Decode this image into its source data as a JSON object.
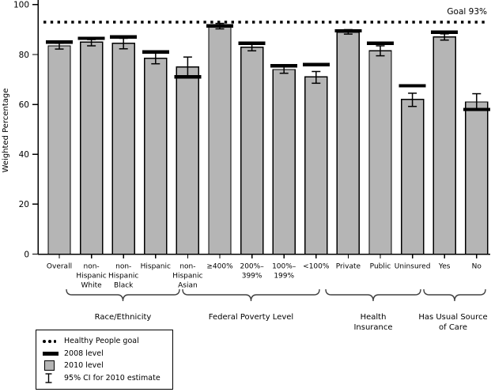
{
  "chart_data": {
    "type": "bar",
    "title": "",
    "ylabel": "Weighted Percentage",
    "xlabel": "",
    "ylim": [
      0,
      100
    ],
    "yticks": [
      0,
      20,
      40,
      60,
      80,
      100
    ],
    "grid": false,
    "goal": {
      "label": "Goal 93%",
      "value": 93
    },
    "legend_position": "bottom-left",
    "legend": [
      {
        "symbol": "dotted-line",
        "label": "Healthy People goal"
      },
      {
        "symbol": "black-dash",
        "label": "2008 level"
      },
      {
        "symbol": "gray-box",
        "label": "2010 level"
      },
      {
        "symbol": "error-bar",
        "label": "95% CI for 2010 estimate"
      }
    ],
    "categories": [
      {
        "lines": [
          "Overall"
        ]
      },
      {
        "lines": [
          "non-",
          "Hispanic",
          "White"
        ]
      },
      {
        "lines": [
          "non-",
          "Hispanic",
          "Black"
        ]
      },
      {
        "lines": [
          "Hispanic"
        ]
      },
      {
        "lines": [
          "non-",
          "Hispanic",
          "Asian"
        ]
      },
      {
        "lines": [
          "≥400%"
        ]
      },
      {
        "lines": [
          "200%–",
          "399%"
        ]
      },
      {
        "lines": [
          "100%–",
          "199%"
        ]
      },
      {
        "lines": [
          "<100%"
        ]
      },
      {
        "lines": [
          "Private"
        ]
      },
      {
        "lines": [
          "Public"
        ]
      },
      {
        "lines": [
          "Uninsured"
        ]
      },
      {
        "lines": [
          "Yes"
        ]
      },
      {
        "lines": [
          "No"
        ]
      }
    ],
    "groups": [
      {
        "label": "Race/Ethnicity",
        "label_lines": [
          "Race/Ethnicity"
        ],
        "from": 1,
        "to": 4
      },
      {
        "label": "Federal Poverty Level",
        "label_lines": [
          "Federal Poverty Level"
        ],
        "from": 5,
        "to": 8
      },
      {
        "label": "Health Insurance",
        "label_lines": [
          "Health",
          "Insurance"
        ],
        "from": 9,
        "to": 11
      },
      {
        "label": "Has Usual Source of Care",
        "label_lines": [
          "Has Usual Source",
          "of Care"
        ],
        "from": 12,
        "to": 13
      }
    ],
    "series": [
      {
        "name": "2008 level",
        "values": [
          85,
          86.5,
          87,
          81,
          71,
          91.5,
          84.5,
          75.5,
          76,
          89.5,
          84.5,
          67.5,
          89,
          58
        ]
      },
      {
        "name": "2010 level",
        "values": [
          83.5,
          85,
          84.5,
          78.5,
          75,
          91.3,
          83,
          74,
          71,
          89,
          81.5,
          62,
          87,
          61
        ]
      }
    ],
    "ci_95_2010": [
      [
        82.2,
        84.5
      ],
      [
        83.5,
        86
      ],
      [
        82.3,
        86.5
      ],
      [
        76.3,
        80.7
      ],
      [
        71,
        79
      ],
      [
        90.3,
        92.5
      ],
      [
        81.5,
        84.3
      ],
      [
        72.5,
        75.5
      ],
      [
        68.5,
        73.2
      ],
      [
        88.2,
        90
      ],
      [
        79.5,
        83.5
      ],
      [
        59.2,
        64.5
      ],
      [
        85.8,
        88.3
      ],
      [
        58,
        64.3
      ]
    ],
    "colors": {
      "bar_fill": "#b5b5b5",
      "bar_border": "#000000",
      "mark_2008": "#000000",
      "goal_line": "#000000",
      "brace": "#404040"
    }
  }
}
